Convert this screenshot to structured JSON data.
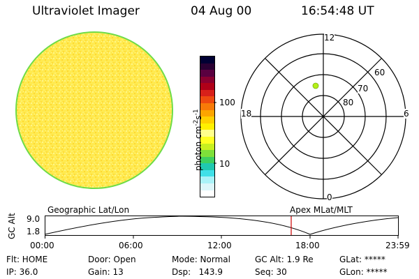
{
  "header": {
    "title": "Ultraviolet Imager",
    "date": "04 Aug 00",
    "time": "16:54:48 UT"
  },
  "colorbar": {
    "unit_label": "photon cm",
    "unit_sup1": "-2",
    "unit_mid": "s",
    "unit_sup2": "-1",
    "ticks": [
      "100",
      "10"
    ],
    "colors": [
      "#000033",
      "#2a0033",
      "#5a0040",
      "#8a0030",
      "#b00018",
      "#d8201a",
      "#ee4a10",
      "#f87a08",
      "#fca500",
      "#ffd000",
      "#fff000",
      "#ffff8c",
      "#ffff22",
      "#c8f020",
      "#7ee03a",
      "#3ed060",
      "#20c8b0",
      "#40e0e8",
      "#aaf2f8",
      "#dcf6fa",
      "#ffffff"
    ]
  },
  "image_panel": {
    "fill_color": "#ffee55",
    "edge_color": "#6edc48"
  },
  "polar_plot": {
    "mlt_labels": {
      "top": "12",
      "bottom": "0",
      "left": "18",
      "right": "6"
    },
    "lat_rings": [
      "60",
      "70",
      "80"
    ],
    "marker_color": "#b4f018"
  },
  "orbit_plot": {
    "left_title": "Geographic Lat/Lon",
    "right_title": "Apex MLat/MLT",
    "ylabel": "GC Alt",
    "yticks": [
      "9.0",
      "1.8"
    ],
    "xticks": [
      "00:00",
      "06:00",
      "12:00",
      "18:00",
      "23:59"
    ],
    "current_time_line_color": "#cc0000"
  },
  "status": {
    "filter": "Flt: HOME",
    "ip": "IP: 36.0",
    "door": "Door: Open",
    "gain": "Gain: 13",
    "mode": "Mode: Normal",
    "dsp": "Dsp:   143.9",
    "gc_alt": "GC Alt: 1.9 Re",
    "seq": "Seq: 30",
    "glat": "GLat: *****",
    "glon": "GLon: *****"
  }
}
